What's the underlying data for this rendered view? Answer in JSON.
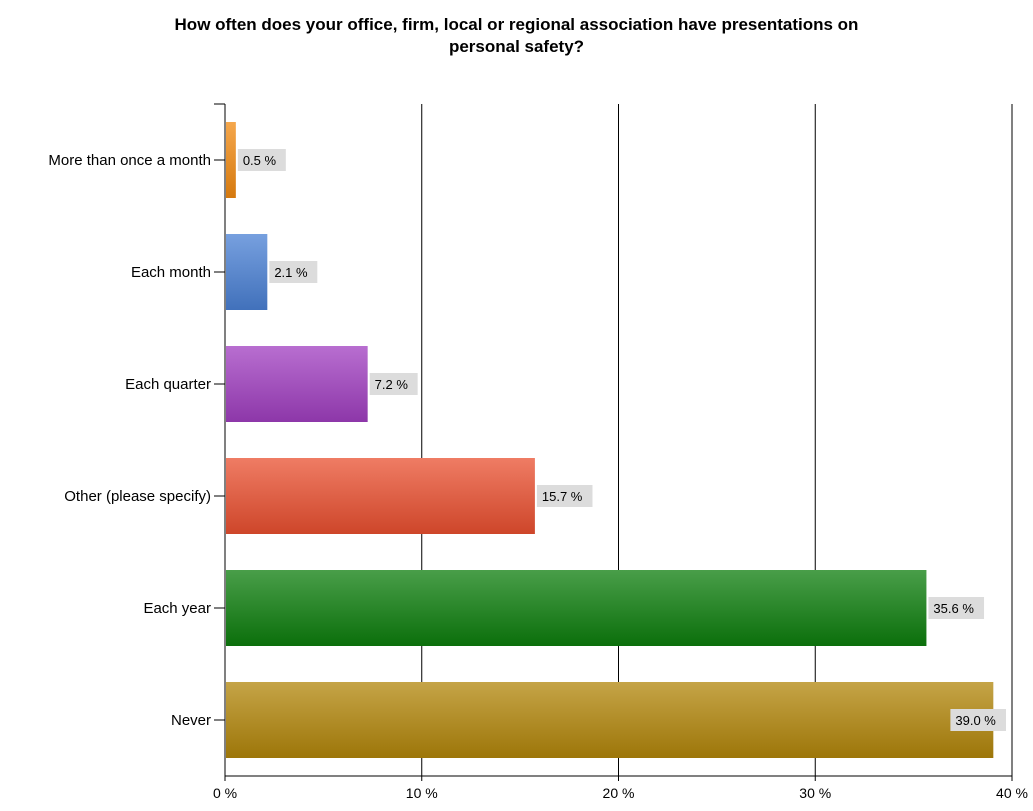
{
  "chart_data": {
    "type": "bar",
    "orientation": "horizontal",
    "title": "How often does your office, firm, local or regional association have presentations on\npersonal safety?",
    "categories": [
      "More than once a month",
      "Each month",
      "Each quarter",
      "Other (please specify)",
      "Each year",
      "Never"
    ],
    "values": [
      0.5,
      2.1,
      7.2,
      15.7,
      35.6,
      39.0
    ],
    "data_labels": [
      "0.5 %",
      "2.1 %",
      "7.2 %",
      "15.7 %",
      "35.6 %",
      "39.0 %"
    ],
    "colors": [
      "#f28a10",
      "#4a80d4",
      "#a03ec0",
      "#ea5030",
      "#0c7e0c",
      "#b2860a"
    ],
    "xlim": [
      0,
      40
    ],
    "x_ticks": [
      0,
      10,
      20,
      30,
      40
    ],
    "x_tick_labels": [
      "0 %",
      "10 %",
      "20 %",
      "30 %",
      "40 %"
    ],
    "grid": "vertical",
    "legend": "none"
  }
}
